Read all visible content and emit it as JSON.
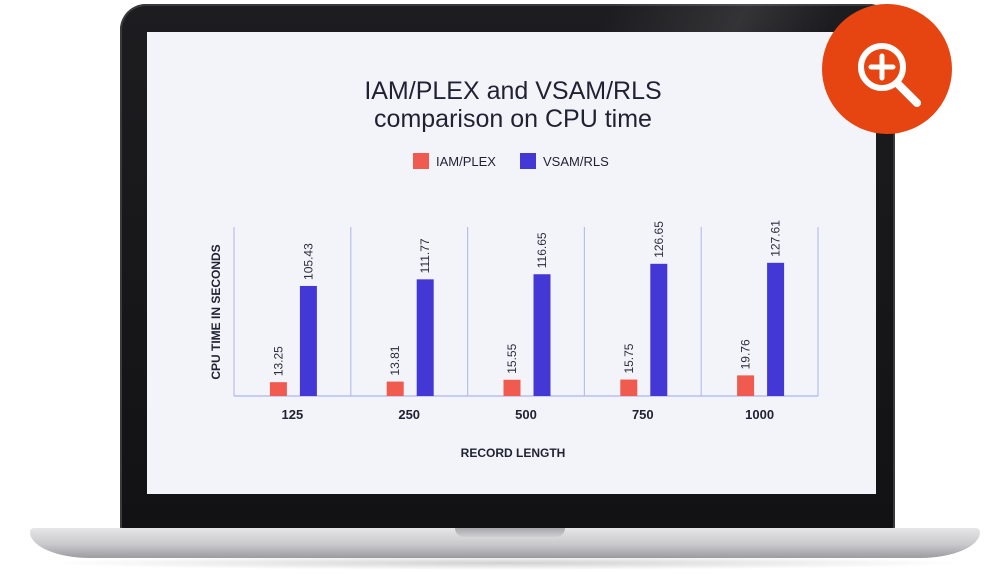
{
  "chart_data": {
    "type": "bar",
    "title": "IAM/PLEX and VSAM/RLS comparison on CPU time",
    "title_lines": [
      "IAM/PLEX and VSAM/RLS",
      "comparison on CPU time"
    ],
    "xlabel": "RECORD LENGTH",
    "ylabel": "CPU TIME IN SECONDS",
    "categories": [
      "125",
      "250",
      "500",
      "750",
      "1000"
    ],
    "series": [
      {
        "name": "IAM/PLEX",
        "values": [
          13.25,
          13.81,
          15.55,
          15.75,
          19.76
        ],
        "labels": [
          "13.25",
          "13.81",
          "15.55",
          "15.75",
          "19.76"
        ],
        "color": "#f15a4f"
      },
      {
        "name": "VSAM/RLS",
        "values": [
          105.43,
          111.77,
          116.65,
          126.65,
          127.61
        ],
        "labels": [
          "105.43",
          "111.77",
          "116.65",
          "126.65",
          "127.61"
        ],
        "color": "#4338d6"
      }
    ],
    "ylim": [
      0,
      160
    ],
    "grid": "vertical separators",
    "legend_position": "top-center"
  },
  "zoom_button": {
    "icon": "zoom-in-icon",
    "color": "#e64410"
  }
}
